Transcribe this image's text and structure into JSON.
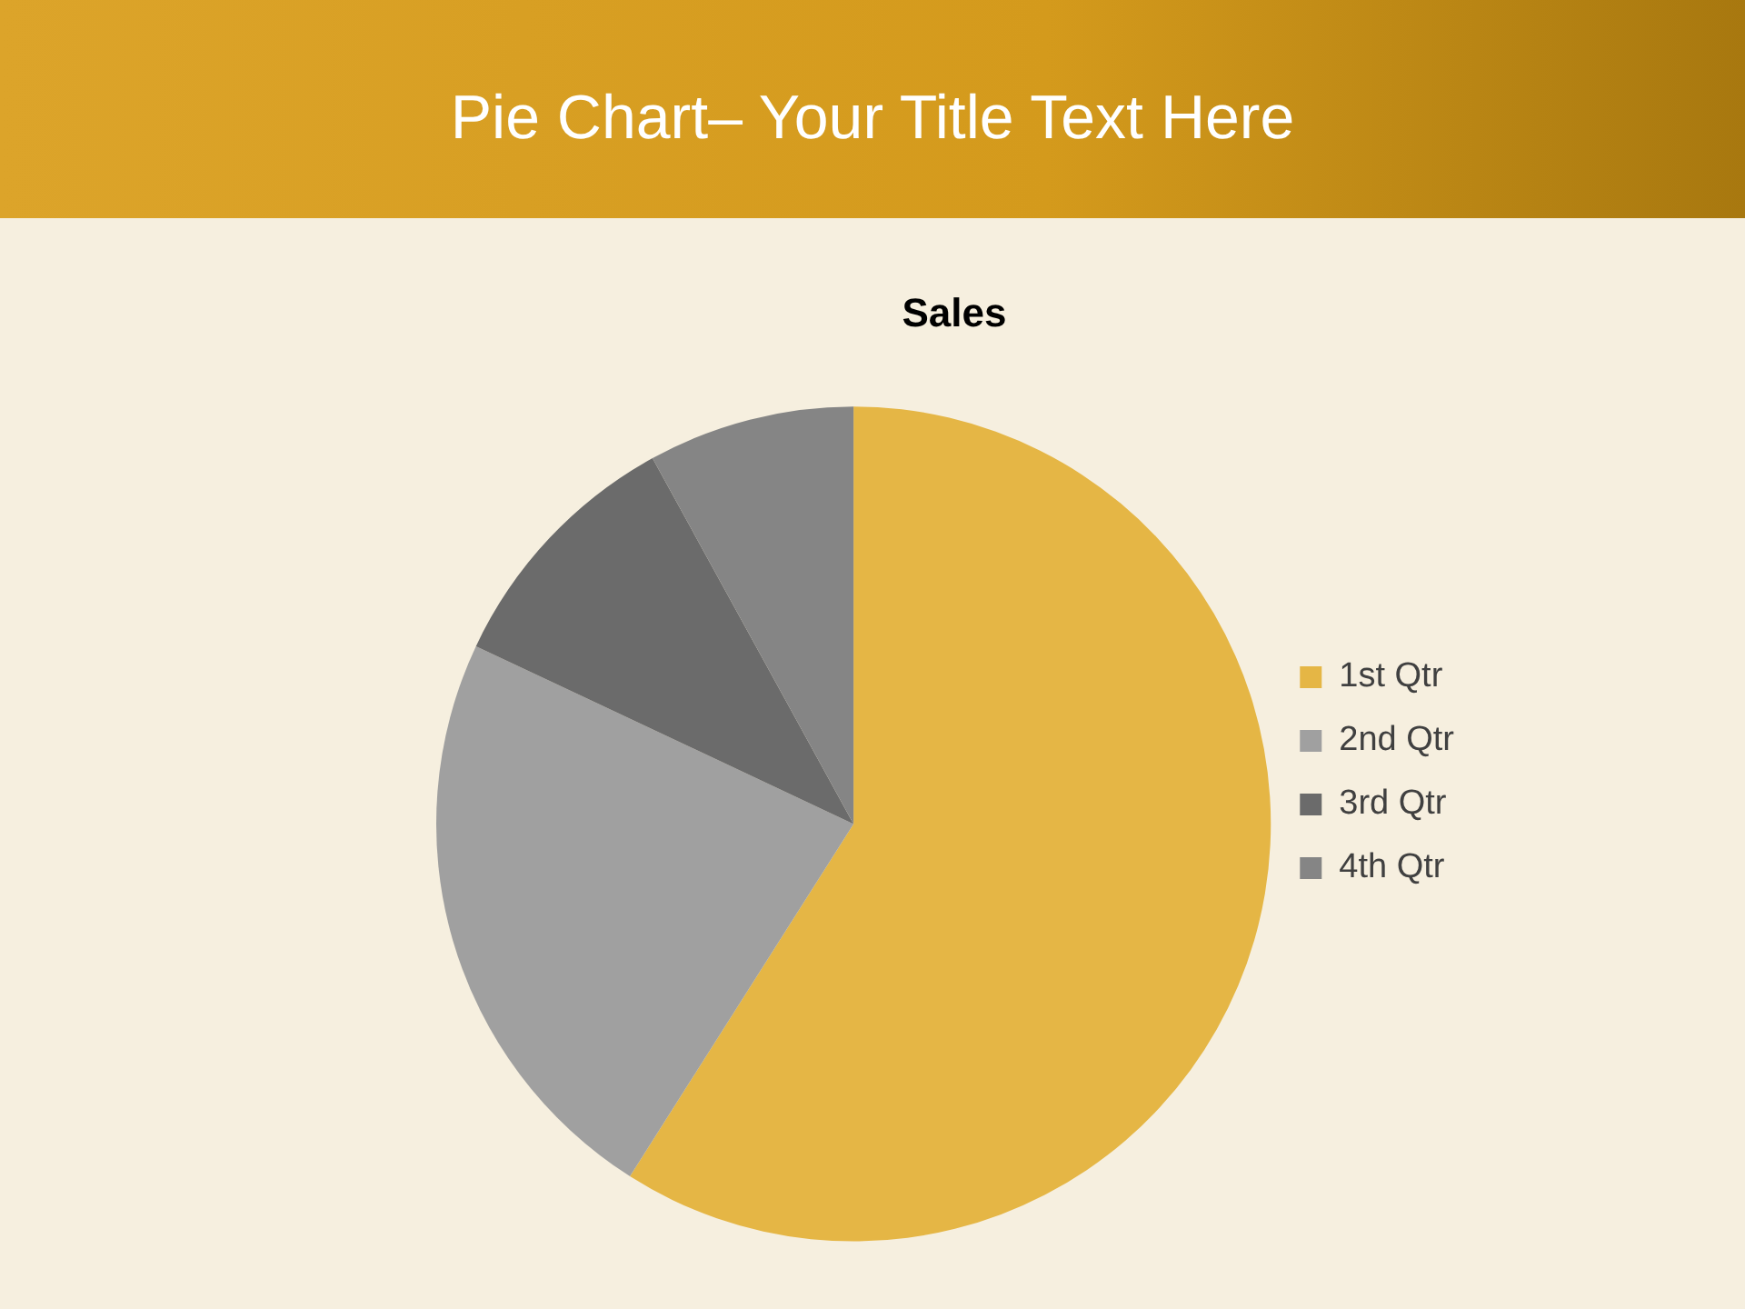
{
  "chart_data": {
    "type": "pie",
    "title": "Pie Chart– Your Title Text Here",
    "subtitle": "Sales",
    "categories": [
      "1st Qtr",
      "2nd Qtr",
      "3rd Qtr",
      "4th Qtr"
    ],
    "values": [
      59,
      23,
      10,
      8
    ],
    "colors": [
      "#e5b645",
      "#a0a0a0",
      "#6b6b6b",
      "#858585"
    ],
    "legend": "right"
  }
}
